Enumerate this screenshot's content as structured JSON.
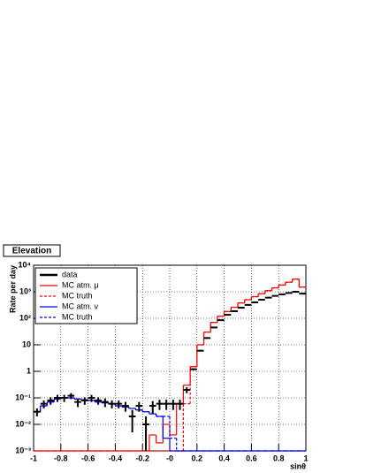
{
  "chart_data": {
    "type": "histogram",
    "title": "Elevation",
    "x_label": "sinθ",
    "y_label": "Rate per day",
    "bins": [
      -1,
      -0.95,
      -0.9,
      -0.85,
      -0.8,
      -0.75,
      -0.7,
      -0.65,
      -0.6,
      -0.55,
      -0.5,
      -0.45,
      -0.4,
      -0.35,
      -0.3,
      -0.25,
      -0.2,
      -0.15,
      -0.1,
      -0.05,
      0,
      0.05,
      0.1,
      0.15,
      0.2,
      0.25,
      0.3,
      0.35,
      0.4,
      0.45,
      0.5,
      0.55,
      0.6,
      0.65,
      0.7,
      0.75,
      0.8,
      0.85,
      0.9,
      0.95,
      1
    ],
    "xlim": [
      -1,
      1
    ],
    "xticks": [
      -1,
      -0.8,
      -0.6,
      -0.4,
      -0.2,
      {
        "value": 0,
        "label": "-0"
      },
      0.2,
      0.4,
      0.6,
      0.8,
      1
    ],
    "ylim": [
      0.001,
      10000
    ],
    "y_log": true,
    "yticks": [
      {
        "value": 0.001,
        "label": "10⁻³"
      },
      {
        "value": 0.01,
        "label": "10⁻²"
      },
      {
        "value": 0.1,
        "label": "10⁻¹"
      },
      1,
      10,
      {
        "value": 100,
        "label": "10²"
      },
      {
        "value": 1000,
        "label": "10³"
      },
      {
        "value": 10000,
        "label": "10⁴"
      }
    ],
    "grid": true,
    "legend": "top-left",
    "series": [
      {
        "name": "data",
        "color": "#000000",
        "style": "points",
        "values": [
          0.03,
          0.06,
          0.08,
          0.1,
          0.1,
          0.12,
          0.07,
          0.08,
          0.1,
          0.08,
          0.07,
          0.06,
          0.06,
          0.05,
          0.02,
          0.05,
          0.01,
          0.05,
          0.06,
          0.06,
          0.06,
          0.06,
          0.2,
          1.2,
          6,
          18,
          45,
          85,
          135,
          185,
          250,
          320,
          400,
          500,
          600,
          700,
          800,
          900,
          1000,
          850
        ],
        "errors": [
          0.01,
          0.02,
          0.025,
          0.03,
          0.03,
          0.03,
          0.025,
          0.025,
          0.03,
          0.025,
          0.025,
          0.02,
          0.02,
          0.02,
          0.015,
          0.02,
          0.01,
          0.025,
          0.025,
          0.025,
          0.025,
          0.025,
          0.05,
          0.1,
          0.3,
          0.5,
          0.8,
          1,
          1.3,
          1.5,
          2,
          2,
          2.5,
          2.5,
          3,
          3,
          3,
          3,
          3,
          3
        ]
      },
      {
        "name": "MC atm. μ",
        "color": "#ff0000",
        "style": "solid",
        "values": [
          0.001,
          0.001,
          0.001,
          0.001,
          0.001,
          0.001,
          0.001,
          0.001,
          0.001,
          0.001,
          0.001,
          0.001,
          0.001,
          0.001,
          0.001,
          0.001,
          0.001,
          0.004,
          0.002,
          0.01,
          0.004,
          0.06,
          0.3,
          1.5,
          10,
          30,
          70,
          120,
          180,
          260,
          380,
          500,
          650,
          850,
          1100,
          1400,
          1800,
          2300,
          3000,
          1500
        ]
      },
      {
        "name": "MC truth",
        "color": "#ff0000",
        "style": "dashed",
        "values": [
          0.001,
          0.001,
          0.001,
          0.001,
          0.001,
          0.001,
          0.001,
          0.001,
          0.001,
          0.001,
          0.001,
          0.001,
          0.001,
          0.001,
          0.001,
          0.001,
          0.001,
          0.001,
          0.001,
          0.001,
          0.001,
          0.001,
          0.06,
          1.5,
          10,
          30,
          70,
          120,
          180,
          260,
          380,
          500,
          650,
          850,
          1100,
          1400,
          1800,
          2300,
          3000,
          1500
        ]
      },
      {
        "name": "MC atm. ν",
        "color": "#0000ff",
        "style": "solid",
        "values": [
          0.03,
          0.05,
          0.07,
          0.09,
          0.1,
          0.1,
          0.09,
          0.085,
          0.08,
          0.07,
          0.065,
          0.06,
          0.05,
          0.045,
          0.04,
          0.035,
          0.03,
          0.025,
          0.02,
          0.003,
          0.001,
          0.001,
          0.001,
          0.001,
          0.001,
          0.001,
          0.001,
          0.001,
          0.001,
          0.001,
          0.001,
          0.001,
          0.001,
          0.001,
          0.001,
          0.001,
          0.001,
          0.001,
          0.001,
          0.001
        ]
      },
      {
        "name": "MC truth",
        "color": "#0000ff",
        "style": "dashed",
        "values": [
          0.03,
          0.05,
          0.07,
          0.09,
          0.1,
          0.1,
          0.09,
          0.085,
          0.08,
          0.07,
          0.065,
          0.06,
          0.05,
          0.045,
          0.04,
          0.035,
          0.03,
          0.025,
          0.02,
          0.02,
          0.003,
          0.001,
          0.001,
          0.001,
          0.001,
          0.001,
          0.001,
          0.001,
          0.001,
          0.001,
          0.001,
          0.001,
          0.001,
          0.001,
          0.001,
          0.001,
          0.001,
          0.001,
          0.001,
          0.001
        ]
      }
    ]
  }
}
